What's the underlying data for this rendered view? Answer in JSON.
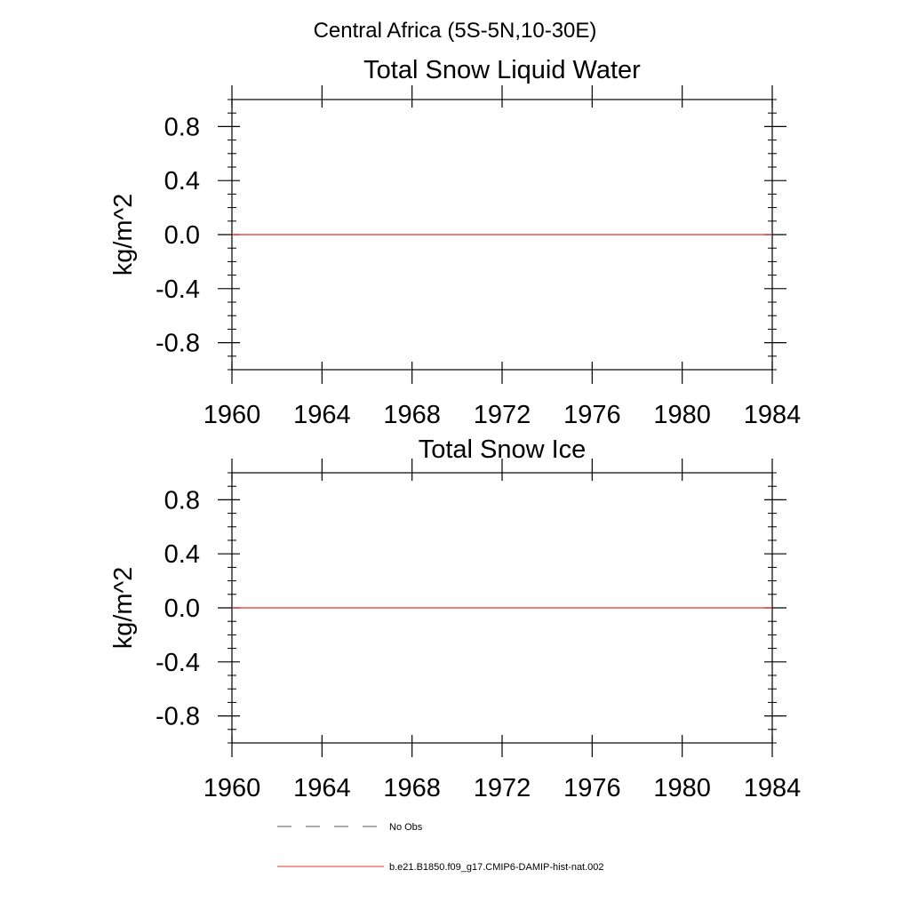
{
  "figure": {
    "title": "Central Africa (5S-5N,10-30E)"
  },
  "chart_data": [
    {
      "type": "line",
      "title": "Total Snow Liquid Water",
      "xlabel": "",
      "ylabel": "kg/m^2",
      "xlim": [
        1960,
        1984
      ],
      "ylim": [
        -1.0,
        1.0
      ],
      "x_ticks": [
        1960,
        1964,
        1968,
        1972,
        1976,
        1980,
        1984
      ],
      "x_tick_labels": [
        "1960",
        "1964",
        "1968",
        "1972",
        "1976",
        "1980",
        "1984"
      ],
      "y_ticks": [
        0.8,
        0.4,
        0.0,
        -0.4,
        -0.8
      ],
      "y_tick_labels": [
        "0.8",
        "0.4",
        "0.0",
        "-0.4",
        "-0.8"
      ],
      "grid": false,
      "series": [
        {
          "name": "b.e21.B1850.f09_g17.CMIP6-DAMIP-hist-nat.002",
          "color": "#e03030",
          "x": [
            1960,
            1984
          ],
          "y": [
            0.0,
            0.0
          ]
        }
      ]
    },
    {
      "type": "line",
      "title": "Total Snow Ice",
      "xlabel": "",
      "ylabel": "kg/m^2",
      "xlim": [
        1960,
        1984
      ],
      "ylim": [
        -1.0,
        1.0
      ],
      "x_ticks": [
        1960,
        1964,
        1968,
        1972,
        1976,
        1980,
        1984
      ],
      "x_tick_labels": [
        "1960",
        "1964",
        "1968",
        "1972",
        "1976",
        "1980",
        "1984"
      ],
      "y_ticks": [
        0.8,
        0.4,
        0.0,
        -0.4,
        -0.8
      ],
      "y_tick_labels": [
        "0.8",
        "0.4",
        "0.0",
        "-0.4",
        "-0.8"
      ],
      "grid": false,
      "series": [
        {
          "name": "b.e21.B1850.f09_g17.CMIP6-DAMIP-hist-nat.002",
          "color": "#e03030",
          "x": [
            1960,
            1984
          ],
          "y": [
            0.0,
            0.0
          ]
        }
      ]
    }
  ],
  "legend": {
    "placement": "bottom",
    "items": [
      {
        "label": "No Obs",
        "style": "dashed",
        "color": "#5a5a7a"
      },
      {
        "label": "b.e21.B1850.f09_g17.CMIP6-DAMIP-hist-nat.002",
        "style": "solid",
        "color": "#e03030"
      }
    ]
  }
}
